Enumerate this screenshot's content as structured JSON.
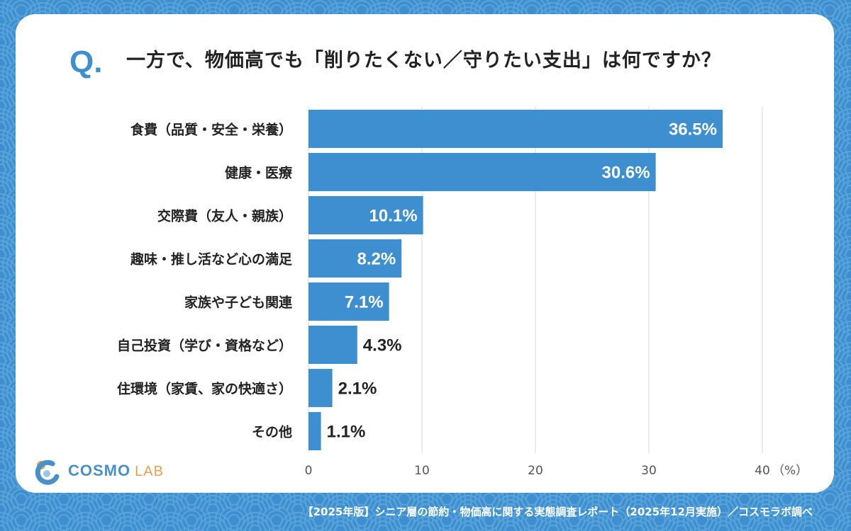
{
  "question_mark": "Q",
  "title": "一方で、物価高でも「削りたくない／守りたい支出」は何ですか？",
  "footer": "【2025年版】シニア層の節約・物価高に関する実態調査レポート（2025年12月実施）／コスモラボ調べ",
  "logo": {
    "text_main": "COSMO",
    "text_sub": "LAB"
  },
  "colors": {
    "accent": "#3d8fd0",
    "bar": "#3d8fd0",
    "grid": "#d9d9d9"
  },
  "chart_data": {
    "type": "bar",
    "orientation": "horizontal",
    "categories": [
      "食費（品質・安全・栄養）",
      "健康・医療",
      "交際費（友人・親族）",
      "趣味・推し活など心の満足",
      "家族や子ども関連",
      "自己投資（学び・資格など）",
      "住環境（家賃、家の快適さ）",
      "その他"
    ],
    "values": [
      36.5,
      30.6,
      10.1,
      8.2,
      7.1,
      4.3,
      2.1,
      1.1
    ],
    "value_labels": [
      "36.5%",
      "30.6%",
      "10.1%",
      "8.2%",
      "7.1%",
      "4.3%",
      "2.1%",
      "1.1%"
    ],
    "x_ticks": [
      "0",
      "10",
      "20",
      "30",
      "40"
    ],
    "x_unit": "（%）",
    "xlim": [
      0,
      40
    ],
    "grid": true
  }
}
